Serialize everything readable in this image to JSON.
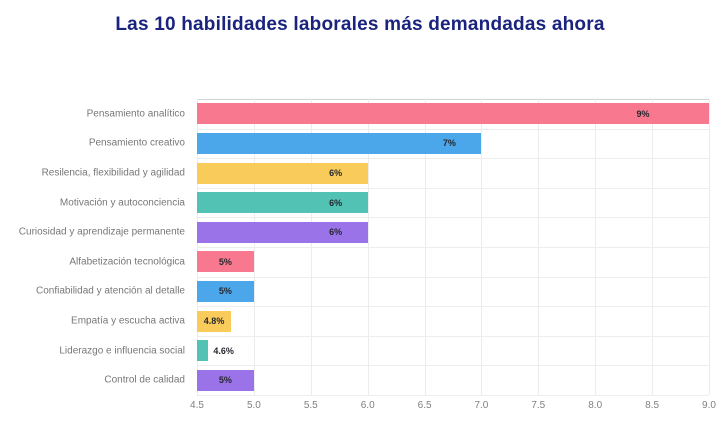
{
  "colors": {
    "title": "#1a237e",
    "category_label": "#777777",
    "tick_label": "#808080",
    "value_label": "#26262e",
    "background": "#ffffff"
  },
  "chart_data": {
    "type": "bar",
    "orientation": "horizontal",
    "title": "Las 10 habilidades laborales más demandadas ahora",
    "xlabel": "",
    "ylabel": "",
    "xlim": [
      4.5,
      9.0
    ],
    "x_ticks": [
      "4.5",
      "5.0",
      "5.5",
      "6.0",
      "6.5",
      "7.0",
      "7.5",
      "8.0",
      "8.5",
      "9.0"
    ],
    "grid": true,
    "legend": false,
    "categories": [
      "Pensamiento analítico",
      "Pensamiento creativo",
      "Resilencia, flexibilidad y agilidad",
      "Motivación y autoconciencia",
      "Curiosidad y aprendizaje permanente",
      "Alfabetización tecnológica",
      "Confiabilidad y atención al detalle",
      "Empatía y escucha activa",
      "Liderazgo e influencia social",
      "Control de calidad"
    ],
    "items": [
      {
        "label": "Pensamiento analítico",
        "value": 9.0,
        "value_label": "9%",
        "color": "#f8798f"
      },
      {
        "label": "Pensamiento creativo",
        "value": 7.0,
        "value_label": "7%",
        "color": "#4ba7e9"
      },
      {
        "label": "Resilencia, flexibilidad y agilidad",
        "value": 6.0,
        "value_label": "6%",
        "color": "#f9cb5b"
      },
      {
        "label": "Motivación y autoconciencia",
        "value": 6.0,
        "value_label": "6%",
        "color": "#52c2b4"
      },
      {
        "label": "Curiosidad y aprendizaje permanente",
        "value": 6.0,
        "value_label": "6%",
        "color": "#9b73e9"
      },
      {
        "label": "Alfabetización tecnológica",
        "value": 5.0,
        "value_label": "5%",
        "color": "#f8798f"
      },
      {
        "label": "Confiabilidad y atención al detalle",
        "value": 5.0,
        "value_label": "5%",
        "color": "#4ba7e9"
      },
      {
        "label": "Empatía y escucha activa",
        "value": 4.8,
        "value_label": "4.8%",
        "color": "#f9cb5b"
      },
      {
        "label": "Liderazgo e influencia social",
        "value": 4.6,
        "value_label": "4.6%",
        "color": "#52c2b4"
      },
      {
        "label": "Control de calidad",
        "value": 5.0,
        "value_label": "5%",
        "color": "#9b73e9"
      }
    ]
  }
}
